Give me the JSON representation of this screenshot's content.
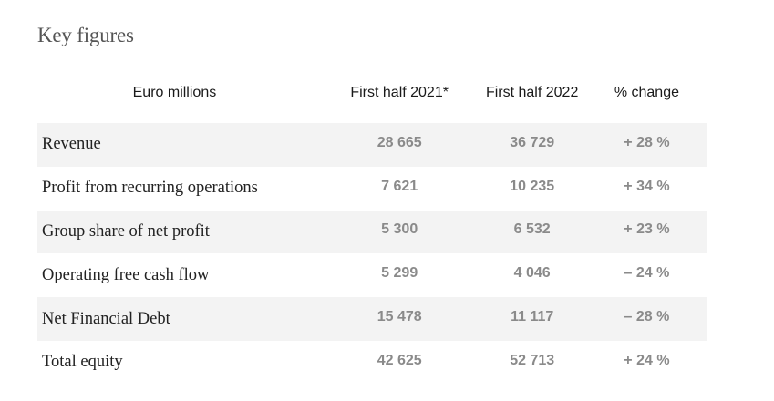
{
  "title": "Key figures",
  "table": {
    "headers": [
      "Euro millions",
      "First half 2021*",
      "First half 2022",
      "% change"
    ],
    "rows": [
      {
        "label": "Revenue",
        "h1_2021": "28 665",
        "h1_2022": "36 729",
        "change": "+ 28 %"
      },
      {
        "label": "Profit from recurring operations",
        "h1_2021": "7 621",
        "h1_2022": "10 235",
        "change": "+ 34 %"
      },
      {
        "label": "Group share of net profit",
        "h1_2021": "5 300",
        "h1_2022": "6 532",
        "change": "+ 23 %"
      },
      {
        "label": "Operating free cash flow",
        "h1_2021": "5 299",
        "h1_2022": "4 046",
        "change": "– 24 %"
      },
      {
        "label": "Net Financial Debt",
        "h1_2021": "15 478",
        "h1_2022": "11 117",
        "change": "– 28 %"
      },
      {
        "label": "Total equity",
        "h1_2021": "42 625",
        "h1_2022": "52 713",
        "change": "+ 24 %"
      }
    ]
  },
  "colors": {
    "row_shade": "#f3f3f3",
    "value_text": "#8a8a8a",
    "title_text": "#555555"
  }
}
